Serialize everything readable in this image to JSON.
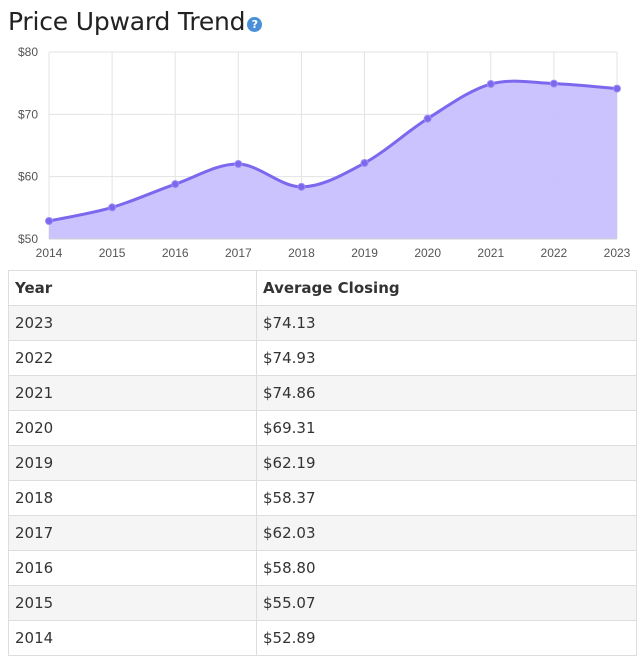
{
  "header": {
    "title": "Price Upward Trend",
    "help_icon": "question-circle-icon"
  },
  "colors": {
    "line": "#7b68ee",
    "fill": "#c8c0fd",
    "grid": "#e3e3e3",
    "help": "#4a90d9"
  },
  "chart_data": {
    "type": "area",
    "title": "",
    "xlabel": "",
    "ylabel": "",
    "x": [
      "2014",
      "2015",
      "2016",
      "2017",
      "2018",
      "2019",
      "2020",
      "2021",
      "2022",
      "2023"
    ],
    "values": [
      52.89,
      55.07,
      58.8,
      62.03,
      58.37,
      62.19,
      69.31,
      74.86,
      74.93,
      74.13
    ],
    "ylim": [
      50,
      80
    ],
    "yticks": [
      "$50",
      "$60",
      "$70",
      "$80"
    ],
    "grid": true,
    "smooth": true
  },
  "table": {
    "columns": [
      "Year",
      "Average Closing"
    ],
    "rows": [
      [
        "2023",
        "$74.13"
      ],
      [
        "2022",
        "$74.93"
      ],
      [
        "2021",
        "$74.86"
      ],
      [
        "2020",
        "$69.31"
      ],
      [
        "2019",
        "$62.19"
      ],
      [
        "2018",
        "$58.37"
      ],
      [
        "2017",
        "$62.03"
      ],
      [
        "2016",
        "$58.80"
      ],
      [
        "2015",
        "$55.07"
      ],
      [
        "2014",
        "$52.89"
      ]
    ]
  }
}
